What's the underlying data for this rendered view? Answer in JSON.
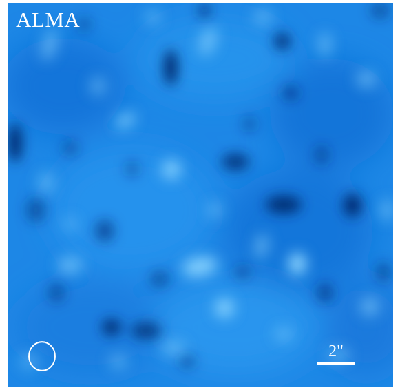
{
  "image": {
    "label": "ALMA",
    "scale_label": "2\"",
    "colors": {
      "deep": "#002a70",
      "mid": "#1f8be8",
      "light": "#8fd7ff",
      "overlay": "#ffffff"
    }
  }
}
